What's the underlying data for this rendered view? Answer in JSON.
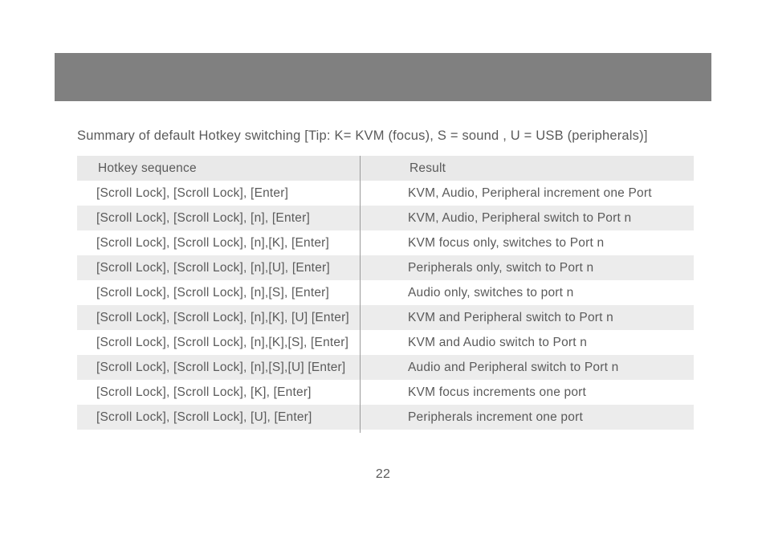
{
  "summary": "Summary of default Hotkey switching  [Tip:  K= KVM (focus),  S = sound ,  U = USB (peripherals)]",
  "columns": [
    "Hotkey sequence",
    "Result"
  ],
  "page_number": "22",
  "background_color": "#ffffff",
  "header_bar_color": "#808080",
  "row_shade_color": "#ececec",
  "text_color": "#5a5a5a",
  "divider_color": "#9a9a9a",
  "font_family": "Helvetica Neue",
  "body_font_size": 15.5,
  "summary_font_size": 16.5,
  "rows": [
    {
      "seq": "[Scroll Lock], [Scroll Lock], [Enter]",
      "res": "KVM, Audio, Peripheral increment one Port",
      "shade": false
    },
    {
      "seq": "[Scroll Lock], [Scroll Lock], [n], [Enter]",
      "res": "KVM, Audio, Peripheral switch to Port n",
      "shade": true
    },
    {
      "seq": "[Scroll Lock], [Scroll Lock], [n],[K], [Enter]",
      "res": "KVM focus only,  switches to Port n",
      "shade": false
    },
    {
      "seq": "[Scroll Lock], [Scroll Lock], [n],[U], [Enter]",
      "res": "Peripherals only,  switch to Port n",
      "shade": true
    },
    {
      "seq": "[Scroll Lock], [Scroll Lock], [n],[S], [Enter]",
      "res": "Audio only,  switches to port n",
      "shade": false
    },
    {
      "seq": "[Scroll Lock], [Scroll Lock], [n],[K], [U] [Enter]",
      "res": "KVM and Peripheral switch to Port n",
      "shade": true
    },
    {
      "seq": "[Scroll Lock], [Scroll Lock], [n],[K],[S], [Enter]",
      "res": "KVM and Audio switch to Port n",
      "shade": false
    },
    {
      "seq": "[Scroll Lock], [Scroll Lock], [n],[S],[U] [Enter]",
      "res": "Audio and Peripheral switch to Port n",
      "shade": true
    },
    {
      "seq": "[Scroll Lock], [Scroll Lock], [K], [Enter]",
      "res": "KVM focus increments one port",
      "shade": false
    },
    {
      "seq": "[Scroll Lock], [Scroll Lock], [U], [Enter]",
      "res": "Peripherals increment one port",
      "shade": true
    }
  ]
}
